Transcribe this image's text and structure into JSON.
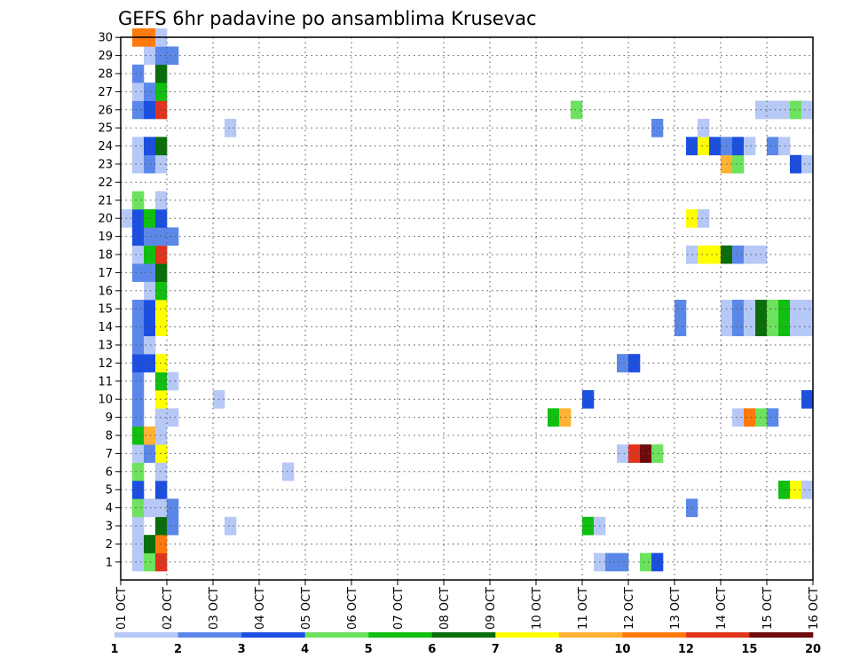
{
  "chart_data": {
    "type": "heatmap",
    "title": "GEFS 6hr padavine po ansamblima Krusevac",
    "x_tick_labels": [
      "01 OCT",
      "02 OCT",
      "03 OCT",
      "04 OCT",
      "05 OCT",
      "06 OCT",
      "07 OCT",
      "08 OCT",
      "09 OCT",
      "10 OCT",
      "11 OCT",
      "12 OCT",
      "13 OCT",
      "14 OCT",
      "15 OCT",
      "16 OCT"
    ],
    "x_range_steps": [
      0,
      60
    ],
    "y_tick_labels": [
      "1",
      "2",
      "3",
      "4",
      "5",
      "6",
      "7",
      "8",
      "9",
      "10",
      "11",
      "12",
      "13",
      "14",
      "15",
      "16",
      "17",
      "18",
      "19",
      "20",
      "21",
      "22",
      "23",
      "24",
      "25",
      "26",
      "27",
      "28",
      "29",
      "30"
    ],
    "grid": true,
    "legend": {
      "placement": "bottom",
      "colors": [
        "#b6c8f6",
        "#5b88e8",
        "#1c4fe0",
        "#6ce25e",
        "#10bf10",
        "#0a6e0a",
        "#ffff00",
        "#ffb233",
        "#ff7a0a",
        "#e1341c",
        "#6e0a0a"
      ],
      "tick_labels": [
        "1",
        "2",
        "3",
        "4",
        "5",
        "6",
        "7",
        "8",
        "10",
        "12",
        "15",
        "20"
      ]
    },
    "cells": [
      {
        "m": 1,
        "s": 1,
        "v": 1.5
      },
      {
        "m": 1,
        "s": 2,
        "v": 4
      },
      {
        "m": 1,
        "s": 3,
        "v": 12
      },
      {
        "m": 1,
        "s": 41,
        "v": 1.5
      },
      {
        "m": 1,
        "s": 42,
        "v": 2.5
      },
      {
        "m": 1,
        "s": 43,
        "v": 2.5
      },
      {
        "m": 1,
        "s": 45,
        "v": 4.5
      },
      {
        "m": 1,
        "s": 46,
        "v": 3.5
      },
      {
        "m": 2,
        "s": 1,
        "v": 1.5
      },
      {
        "m": 2,
        "s": 2,
        "v": 6.5
      },
      {
        "m": 2,
        "s": 3,
        "v": 11
      },
      {
        "m": 3,
        "s": 1,
        "v": 1.5
      },
      {
        "m": 3,
        "s": 3,
        "v": 6.5
      },
      {
        "m": 3,
        "s": 4,
        "v": 2.5
      },
      {
        "m": 3,
        "s": 9,
        "v": 1.5
      },
      {
        "m": 3,
        "s": 40,
        "v": 5.5
      },
      {
        "m": 3,
        "s": 41,
        "v": 1.5
      },
      {
        "m": 4,
        "s": 1,
        "v": 4.5
      },
      {
        "m": 4,
        "s": 2,
        "v": 1.5
      },
      {
        "m": 4,
        "s": 3,
        "v": 1.5
      },
      {
        "m": 4,
        "s": 4,
        "v": 2.5
      },
      {
        "m": 4,
        "s": 49,
        "v": 2.5
      },
      {
        "m": 5,
        "s": 1,
        "v": 3.5
      },
      {
        "m": 5,
        "s": 3,
        "v": 3.5
      },
      {
        "m": 5,
        "s": 57,
        "v": 5.5
      },
      {
        "m": 5,
        "s": 58,
        "v": 7.5
      },
      {
        "m": 5,
        "s": 59,
        "v": 1.5
      },
      {
        "m": 6,
        "s": 1,
        "v": 4.5
      },
      {
        "m": 6,
        "s": 3,
        "v": 1.5
      },
      {
        "m": 6,
        "s": 14,
        "v": 1.5
      },
      {
        "m": 7,
        "s": 1,
        "v": 1.5
      },
      {
        "m": 7,
        "s": 2,
        "v": 2.5
      },
      {
        "m": 7,
        "s": 3,
        "v": 7.5
      },
      {
        "m": 7,
        "s": 43,
        "v": 1.5
      },
      {
        "m": 7,
        "s": 44,
        "v": 13
      },
      {
        "m": 7,
        "s": 45,
        "v": 17
      },
      {
        "m": 7,
        "s": 46,
        "v": 4.5
      },
      {
        "m": 8,
        "s": 1,
        "v": 5.5
      },
      {
        "m": 8,
        "s": 2,
        "v": 9
      },
      {
        "m": 8,
        "s": 3,
        "v": 1.5
      },
      {
        "m": 9,
        "s": 1,
        "v": 2.5
      },
      {
        "m": 9,
        "s": 3,
        "v": 1.5
      },
      {
        "m": 9,
        "s": 4,
        "v": 1.5
      },
      {
        "m": 9,
        "s": 37,
        "v": 5.5
      },
      {
        "m": 9,
        "s": 38,
        "v": 9
      },
      {
        "m": 9,
        "s": 53,
        "v": 1.5
      },
      {
        "m": 9,
        "s": 54,
        "v": 11
      },
      {
        "m": 9,
        "s": 55,
        "v": 4.5
      },
      {
        "m": 9,
        "s": 56,
        "v": 2.5
      },
      {
        "m": 10,
        "s": 1,
        "v": 2.5
      },
      {
        "m": 10,
        "s": 3,
        "v": 7.5
      },
      {
        "m": 10,
        "s": 8,
        "v": 1.5
      },
      {
        "m": 10,
        "s": 40,
        "v": 3.5
      },
      {
        "m": 10,
        "s": 59,
        "v": 3.5
      },
      {
        "m": 11,
        "s": 1,
        "v": 2.5
      },
      {
        "m": 11,
        "s": 3,
        "v": 5.5
      },
      {
        "m": 11,
        "s": 4,
        "v": 1.5
      },
      {
        "m": 12,
        "s": 1,
        "v": 3.5
      },
      {
        "m": 12,
        "s": 2,
        "v": 3.5
      },
      {
        "m": 12,
        "s": 3,
        "v": 7.5
      },
      {
        "m": 12,
        "s": 43,
        "v": 2.5
      },
      {
        "m": 12,
        "s": 44,
        "v": 3.5
      },
      {
        "m": 13,
        "s": 1,
        "v": 2.5
      },
      {
        "m": 13,
        "s": 2,
        "v": 1.5
      },
      {
        "m": 14,
        "s": 1,
        "v": 2.5
      },
      {
        "m": 14,
        "s": 2,
        "v": 3.5
      },
      {
        "m": 14,
        "s": 3,
        "v": 7.5
      },
      {
        "m": 14,
        "s": 48,
        "v": 2.5
      },
      {
        "m": 14,
        "s": 52,
        "v": 1.5
      },
      {
        "m": 14,
        "s": 53,
        "v": 2.5
      },
      {
        "m": 14,
        "s": 54,
        "v": 1.5
      },
      {
        "m": 14,
        "s": 55,
        "v": 6.5
      },
      {
        "m": 14,
        "s": 56,
        "v": 4.5
      },
      {
        "m": 14,
        "s": 57,
        "v": 5.5
      },
      {
        "m": 14,
        "s": 58,
        "v": 1.5
      },
      {
        "m": 14,
        "s": 59,
        "v": 1.5
      },
      {
        "m": 15,
        "s": 1,
        "v": 2.5
      },
      {
        "m": 15,
        "s": 2,
        "v": 3.5
      },
      {
        "m": 15,
        "s": 3,
        "v": 7.5
      },
      {
        "m": 15,
        "s": 48,
        "v": 2.5
      },
      {
        "m": 15,
        "s": 52,
        "v": 1.5
      },
      {
        "m": 15,
        "s": 53,
        "v": 2.5
      },
      {
        "m": 15,
        "s": 54,
        "v": 1.5
      },
      {
        "m": 15,
        "s": 55,
        "v": 6.5
      },
      {
        "m": 15,
        "s": 56,
        "v": 4.5
      },
      {
        "m": 15,
        "s": 57,
        "v": 5.5
      },
      {
        "m": 15,
        "s": 58,
        "v": 1.5
      },
      {
        "m": 15,
        "s": 59,
        "v": 1.5
      },
      {
        "m": 16,
        "s": 2,
        "v": 1.5
      },
      {
        "m": 16,
        "s": 3,
        "v": 5.5
      },
      {
        "m": 17,
        "s": 1,
        "v": 2.5
      },
      {
        "m": 17,
        "s": 2,
        "v": 2.5
      },
      {
        "m": 17,
        "s": 3,
        "v": 6.5
      },
      {
        "m": 18,
        "s": 1,
        "v": 1.5
      },
      {
        "m": 18,
        "s": 2,
        "v": 5.5
      },
      {
        "m": 18,
        "s": 3,
        "v": 13
      },
      {
        "m": 18,
        "s": 49,
        "v": 1.5
      },
      {
        "m": 18,
        "s": 50,
        "v": 7.5
      },
      {
        "m": 18,
        "s": 51,
        "v": 7.5
      },
      {
        "m": 18,
        "s": 52,
        "v": 6.5
      },
      {
        "m": 18,
        "s": 53,
        "v": 2.5
      },
      {
        "m": 18,
        "s": 54,
        "v": 1.5
      },
      {
        "m": 18,
        "s": 55,
        "v": 1.5
      },
      {
        "m": 19,
        "s": 1,
        "v": 3.5
      },
      {
        "m": 19,
        "s": 2,
        "v": 2.5
      },
      {
        "m": 19,
        "s": 3,
        "v": 2.5
      },
      {
        "m": 19,
        "s": 4,
        "v": 2.5
      },
      {
        "m": 20,
        "s": 0,
        "v": 1.5
      },
      {
        "m": 20,
        "s": 1,
        "v": 3.5
      },
      {
        "m": 20,
        "s": 2,
        "v": 5.5
      },
      {
        "m": 20,
        "s": 3,
        "v": 3.5
      },
      {
        "m": 20,
        "s": 49,
        "v": 7.5
      },
      {
        "m": 20,
        "s": 50,
        "v": 1.5
      },
      {
        "m": 21,
        "s": 1,
        "v": 4.5
      },
      {
        "m": 21,
        "s": 3,
        "v": 1.5
      },
      {
        "m": 23,
        "s": 1,
        "v": 1.5
      },
      {
        "m": 23,
        "s": 2,
        "v": 2.5
      },
      {
        "m": 23,
        "s": 3,
        "v": 1.5
      },
      {
        "m": 23,
        "s": 52,
        "v": 9
      },
      {
        "m": 23,
        "s": 53,
        "v": 4.5
      },
      {
        "m": 23,
        "s": 58,
        "v": 3.5
      },
      {
        "m": 23,
        "s": 59,
        "v": 1.5
      },
      {
        "m": 24,
        "s": 1,
        "v": 1.5
      },
      {
        "m": 24,
        "s": 2,
        "v": 3.5
      },
      {
        "m": 24,
        "s": 3,
        "v": 6.5
      },
      {
        "m": 24,
        "s": 49,
        "v": 3.5
      },
      {
        "m": 24,
        "s": 50,
        "v": 7.5
      },
      {
        "m": 24,
        "s": 51,
        "v": 3.5
      },
      {
        "m": 24,
        "s": 52,
        "v": 2.5
      },
      {
        "m": 24,
        "s": 53,
        "v": 3.5
      },
      {
        "m": 24,
        "s": 54,
        "v": 1.5
      },
      {
        "m": 24,
        "s": 56,
        "v": 2.5
      },
      {
        "m": 24,
        "s": 57,
        "v": 1.5
      },
      {
        "m": 25,
        "s": 9,
        "v": 1.5
      },
      {
        "m": 25,
        "s": 46,
        "v": 2.5
      },
      {
        "m": 25,
        "s": 50,
        "v": 1.5
      },
      {
        "m": 26,
        "s": 1,
        "v": 2.5
      },
      {
        "m": 26,
        "s": 2,
        "v": 3.5
      },
      {
        "m": 26,
        "s": 3,
        "v": 13
      },
      {
        "m": 26,
        "s": 39,
        "v": 4.5
      },
      {
        "m": 26,
        "s": 55,
        "v": 1.5
      },
      {
        "m": 26,
        "s": 56,
        "v": 1.5
      },
      {
        "m": 26,
        "s": 57,
        "v": 1.5
      },
      {
        "m": 26,
        "s": 58,
        "v": 4.5
      },
      {
        "m": 26,
        "s": 59,
        "v": 1.5
      },
      {
        "m": 27,
        "s": 1,
        "v": 1.5
      },
      {
        "m": 27,
        "s": 2,
        "v": 2.5
      },
      {
        "m": 27,
        "s": 3,
        "v": 5.5
      },
      {
        "m": 28,
        "s": 1,
        "v": 2.5
      },
      {
        "m": 28,
        "s": 3,
        "v": 6.5
      },
      {
        "m": 29,
        "s": 2,
        "v": 1.5
      },
      {
        "m": 29,
        "s": 3,
        "v": 2.5
      },
      {
        "m": 29,
        "s": 4,
        "v": 2.5
      },
      {
        "m": 30,
        "s": 1,
        "v": 11
      },
      {
        "m": 30,
        "s": 2,
        "v": 11
      },
      {
        "m": 30,
        "s": 3,
        "v": 1.5
      }
    ]
  }
}
